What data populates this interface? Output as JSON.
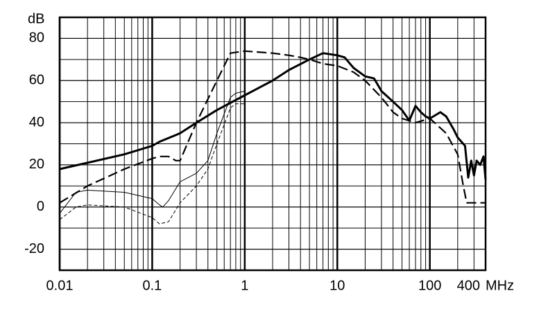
{
  "chart_data": {
    "type": "line",
    "x_label": "MHz",
    "y_label": "dB",
    "xscale": "log",
    "xlim": [
      0.01,
      400
    ],
    "xticks": [
      0.01,
      0.1,
      1,
      10,
      100,
      400
    ],
    "ylim": [
      -30,
      90
    ],
    "yticks": [
      -20,
      0,
      20,
      40,
      60,
      80
    ],
    "grid": true,
    "series": [
      {
        "color": "#000",
        "width": 3,
        "dash": "solid",
        "x": [
          0.01,
          0.02,
          0.05,
          0.1,
          0.12,
          0.2,
          0.3,
          0.5,
          1,
          2,
          3,
          5,
          7,
          10,
          12,
          15,
          20,
          25,
          30,
          40,
          50,
          60,
          70,
          80,
          90,
          100,
          130,
          150,
          180,
          200,
          240,
          260,
          280,
          300,
          320,
          350,
          380,
          400
        ],
        "values": [
          18,
          21,
          25,
          29,
          31,
          35,
          40,
          46,
          53,
          60,
          65,
          70,
          73,
          72,
          71,
          66,
          62,
          61,
          55,
          50,
          46,
          41,
          48,
          45,
          43,
          42,
          45,
          43,
          37,
          33,
          29,
          14,
          22,
          15,
          22,
          20,
          24,
          13
        ]
      },
      {
        "color": "#000",
        "width": 2.2,
        "dash": "dashed",
        "x": [
          0.01,
          0.02,
          0.05,
          0.1,
          0.12,
          0.15,
          0.18,
          0.2,
          0.3,
          0.5,
          0.7,
          1,
          2,
          3,
          4,
          5,
          7,
          10,
          15,
          20,
          30,
          40,
          50,
          70,
          100,
          150,
          200,
          230,
          250,
          300,
          400
        ],
        "values": [
          2,
          10,
          18,
          23,
          24,
          24,
          22,
          22,
          40,
          60,
          73,
          74,
          73,
          72,
          71,
          70,
          68,
          67,
          64,
          60,
          52,
          45,
          42,
          40,
          42,
          35,
          25,
          10,
          2,
          2,
          2
        ]
      },
      {
        "color": "#000",
        "width": 1,
        "dash": "solid",
        "x": [
          0.01,
          0.015,
          0.02,
          0.05,
          0.1,
          0.12,
          0.13,
          0.15,
          0.2,
          0.3,
          0.4,
          0.5,
          0.7,
          0.8,
          1
        ],
        "values": [
          -3,
          7,
          8,
          7,
          4,
          1,
          0,
          3,
          12,
          16,
          22,
          35,
          52,
          54,
          55
        ]
      },
      {
        "color": "#000",
        "width": 1,
        "dash": "dotted",
        "x": [
          0.01,
          0.015,
          0.02,
          0.05,
          0.1,
          0.12,
          0.15,
          0.2,
          0.3,
          0.4,
          0.5,
          0.7,
          0.8,
          1
        ],
        "values": [
          -6,
          0,
          1,
          0,
          -5,
          -8,
          -7,
          2,
          10,
          18,
          30,
          47,
          49,
          49
        ]
      }
    ]
  }
}
